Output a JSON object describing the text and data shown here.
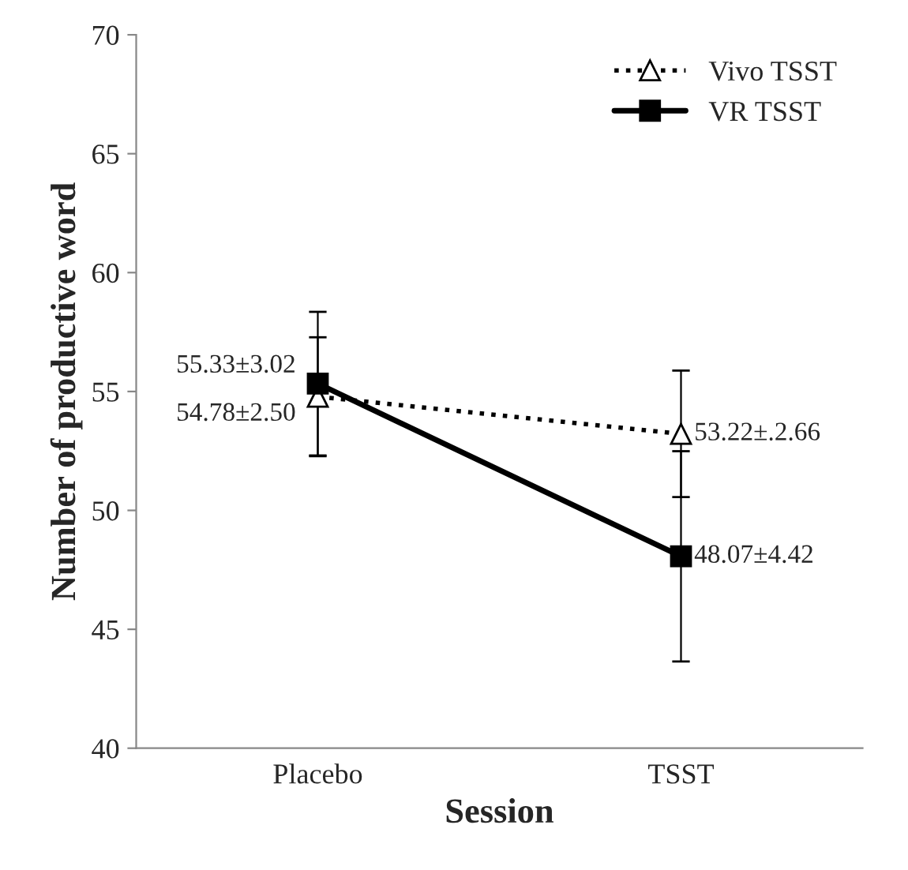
{
  "chart_data": {
    "type": "line",
    "xlabel": "Session",
    "ylabel": "Number of productive word",
    "categories": [
      "Placebo",
      "TSST"
    ],
    "series": [
      {
        "name": "Vivo TSST",
        "color": "#000000",
        "marker": "triangle",
        "line_style": "dotted",
        "values": [
          54.78,
          53.22
        ],
        "errors": [
          2.5,
          2.66
        ],
        "value_labels": [
          "54.78±2.50",
          "53.22±.2.66"
        ]
      },
      {
        "name": "VR TSST",
        "color": "#000000",
        "marker": "square",
        "line_style": "solid",
        "values": [
          55.33,
          48.07
        ],
        "errors": [
          3.02,
          4.42
        ],
        "value_labels": [
          "55.33±3.02",
          "48.07±4.42"
        ]
      }
    ],
    "ylim": [
      40,
      70
    ],
    "yticks": [
      40,
      45,
      50,
      55,
      60,
      65,
      70
    ],
    "grid": false,
    "legend": "top right"
  }
}
